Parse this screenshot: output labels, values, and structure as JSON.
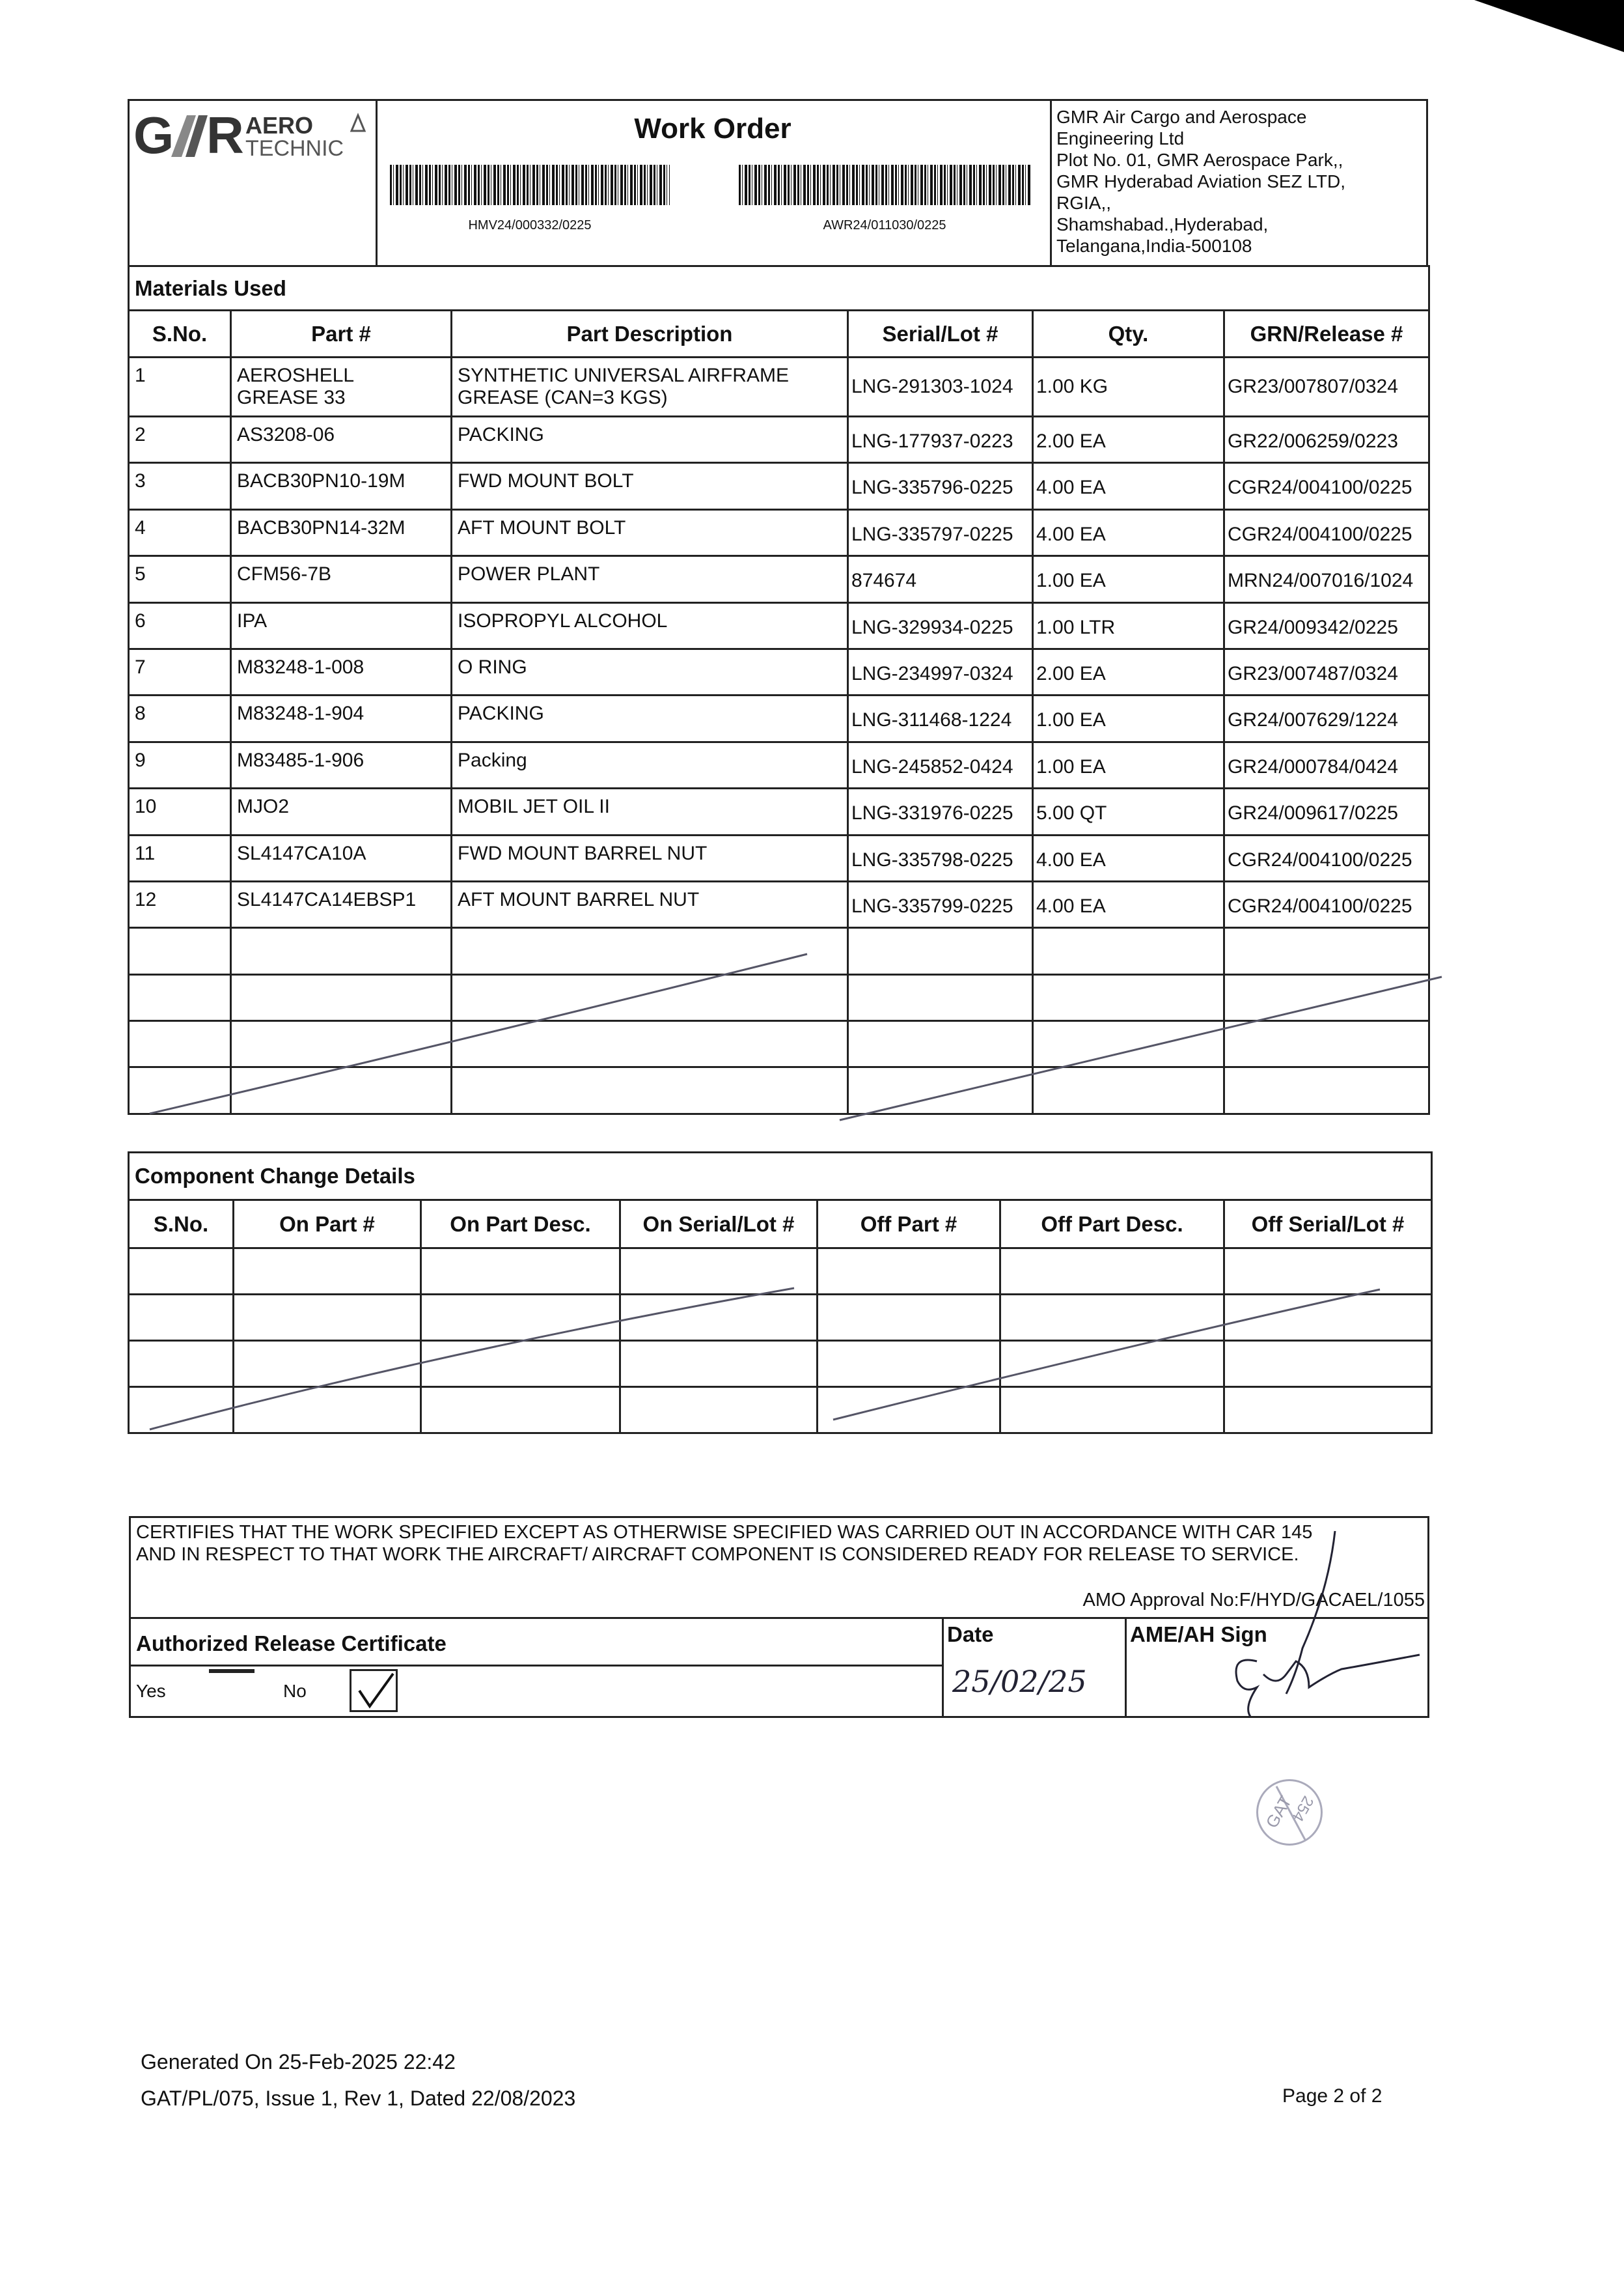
{
  "header": {
    "logo_text": "GMR AERO TECHNIC",
    "title": "Work Order",
    "barcode_left_text": "HMV24/000332/0225",
    "barcode_right_text": "AWR24/011030/0225",
    "address_lines": [
      "GMR Air Cargo and Aerospace",
      "Engineering Ltd",
      "Plot No. 01, GMR Aerospace Park,,",
      "GMR Hyderabad Aviation SEZ LTD,",
      "RGIA,,",
      "Shamshabad.,Hyderabad,",
      "Telangana,India-500108"
    ]
  },
  "materials": {
    "section_title": "Materials Used",
    "columns": [
      "S.No.",
      "Part #",
      "Part Description",
      "Serial/Lot #",
      "Qty.",
      "GRN/Release #"
    ],
    "rows": [
      [
        "1",
        "AEROSHELL\nGREASE 33",
        "SYNTHETIC UNIVERSAL AIRFRAME\nGREASE (CAN=3 KGS)",
        "LNG-291303-1024",
        "1.00 KG",
        "GR23/007807/0324"
      ],
      [
        "2",
        "AS3208-06",
        "PACKING",
        "LNG-177937-0223",
        "2.00 EA",
        "GR22/006259/0223"
      ],
      [
        "3",
        "BACB30PN10-19M",
        "FWD MOUNT BOLT",
        "LNG-335796-0225",
        "4.00 EA",
        "CGR24/004100/0225"
      ],
      [
        "4",
        "BACB30PN14-32M",
        "AFT MOUNT BOLT",
        "LNG-335797-0225",
        "4.00 EA",
        "CGR24/004100/0225"
      ],
      [
        "5",
        "CFM56-7B",
        "POWER PLANT",
        "874674",
        "1.00 EA",
        "MRN24/007016/1024"
      ],
      [
        "6",
        "IPA",
        "ISOPROPYL ALCOHOL",
        "LNG-329934-0225",
        "1.00 LTR",
        "GR24/009342/0225"
      ],
      [
        "7",
        "M83248-1-008",
        "O RING",
        "LNG-234997-0324",
        "2.00 EA",
        "GR23/007487/0324"
      ],
      [
        "8",
        "M83248-1-904",
        "PACKING",
        "LNG-311468-1224",
        "1.00 EA",
        "GR24/007629/1224"
      ],
      [
        "9",
        "M83485-1-906",
        "Packing",
        "LNG-245852-0424",
        "1.00 EA",
        "GR24/000784/0424"
      ],
      [
        "10",
        "MJO2",
        "MOBIL JET OIL II",
        "LNG-331976-0225",
        "5.00 QT",
        "GR24/009617/0225"
      ],
      [
        "11",
        "SL4147CA10A",
        "FWD MOUNT BARREL NUT",
        "LNG-335798-0225",
        "4.00 EA",
        "CGR24/004100/0225"
      ],
      [
        "12",
        "SL4147CA14EBSP1",
        "AFT MOUNT BARREL NUT",
        "LNG-335799-0225",
        "4.00 EA",
        "CGR24/004100/0225"
      ]
    ]
  },
  "components": {
    "section_title": "Component Change Details",
    "columns": [
      "S.No.",
      "On Part #",
      "On Part Desc.",
      "On Serial/Lot #",
      "Off Part #",
      "Off Part Desc.",
      "Off Serial/Lot #"
    ]
  },
  "certificate": {
    "statement_line1": "CERTIFIES THAT THE WORK SPECIFIED EXCEPT AS OTHERWISE SPECIFIED WAS CARRIED OUT IN ACCORDANCE WITH CAR 145",
    "statement_line2": "AND IN RESPECT TO THAT WORK THE AIRCRAFT/ AIRCRAFT COMPONENT IS CONSIDERED READY FOR RELEASE TO SERVICE.",
    "amo_approval": "AMO Approval No:F/HYD/GACAEL/1055",
    "release_label": "Authorized Release Certificate",
    "date_label": "Date",
    "sign_label": "AME/AH Sign",
    "yes_label": "Yes",
    "no_label": "No",
    "no_checked": true,
    "handwritten_date": "25/02/25"
  },
  "stamp": {
    "text1": "GAT",
    "text2": "254"
  },
  "footer": {
    "generated": "Generated On 25-Feb-2025 22:42",
    "form_ref": "GAT/PL/075, Issue 1, Rev 1, Dated 22/08/2023",
    "page": "Page 2 of 2"
  }
}
